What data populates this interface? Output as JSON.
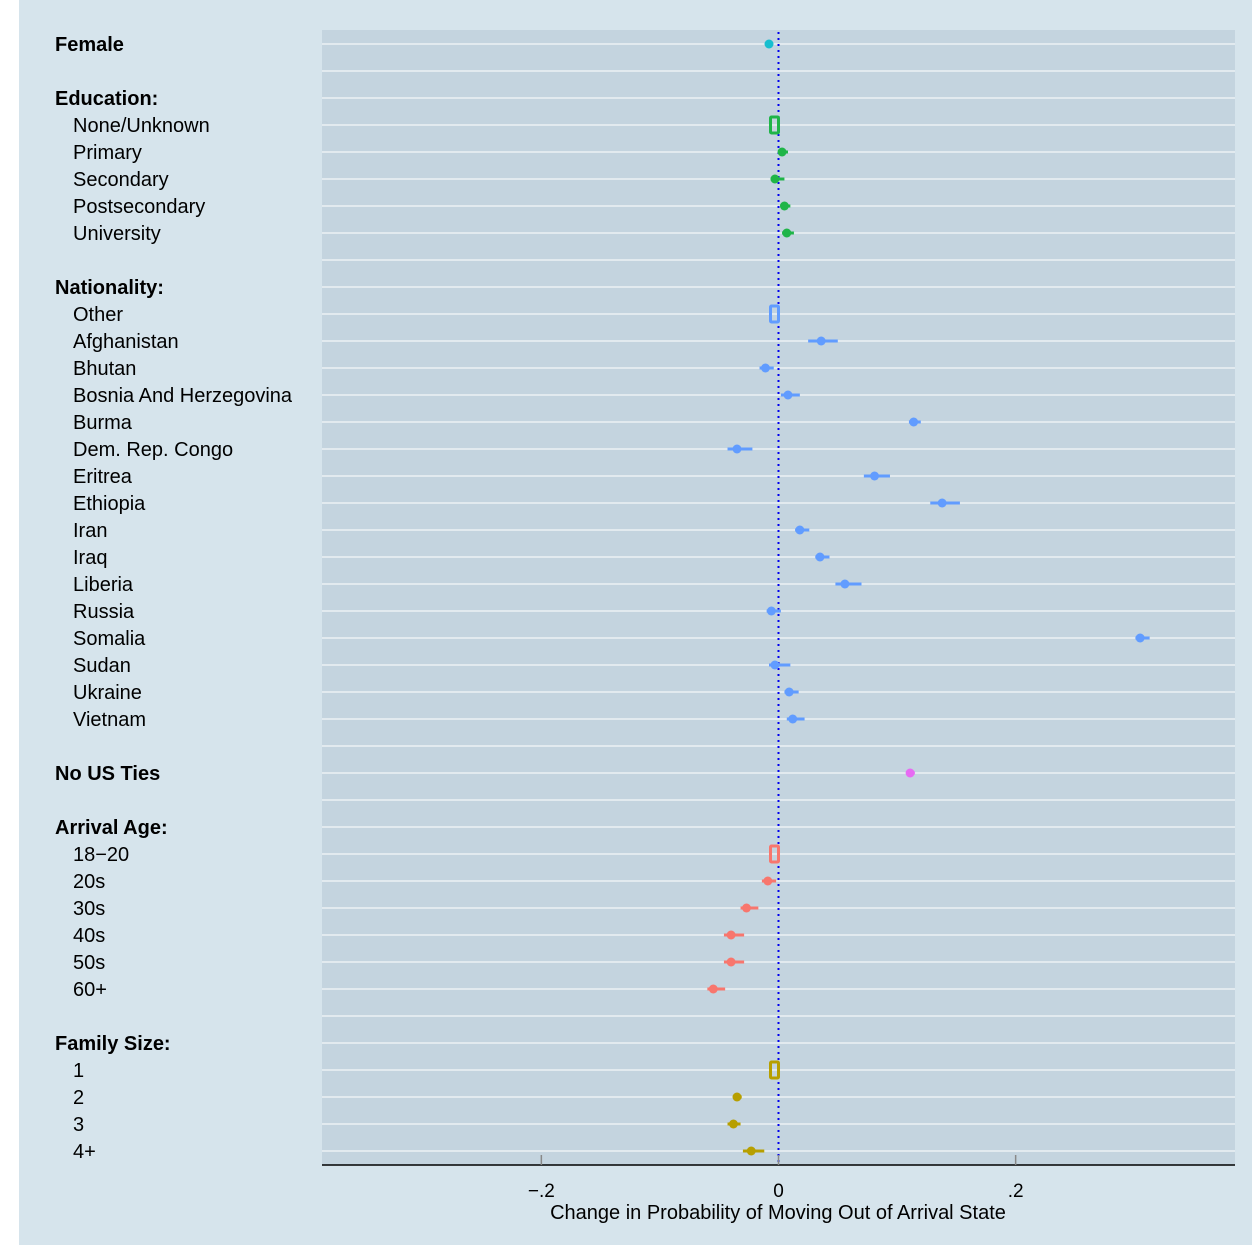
{
  "chart_data": {
    "type": "scatter",
    "xlabel": "Change in Probability of Moving Out of Arrival State",
    "xlim": [
      -0.385,
      0.385
    ],
    "x_ticks": [
      {
        "value": -0.2,
        "label": "−.2"
      },
      {
        "value": 0,
        "label": "0"
      },
      {
        "value": 0.2,
        "label": ".2"
      }
    ],
    "reference_line": {
      "x": 0,
      "style": "dotted",
      "color": "#0000ee"
    },
    "colors": {
      "panel": "#c4d4df",
      "outer": "#d6e4ec",
      "female": "#17becf",
      "education": "#1fb548",
      "nationality": "#619cff",
      "us_ties": "#e76bf3",
      "arrival_age": "#f8766d",
      "family_size": "#b79f00"
    },
    "rows": [
      {
        "label": "Female",
        "header": true,
        "group": "female",
        "estimate": -0.008,
        "ci": [
          -0.01,
          -0.006
        ]
      },
      {
        "label": "",
        "spacer": true
      },
      {
        "label": "Education:",
        "header": true
      },
      {
        "label": "None/Unknown",
        "group": "education",
        "reference": true
      },
      {
        "label": "Primary",
        "group": "education",
        "estimate": 0.003,
        "ci": [
          0.0,
          0.008
        ]
      },
      {
        "label": "Secondary",
        "group": "education",
        "estimate": -0.003,
        "ci": [
          -0.006,
          0.005
        ]
      },
      {
        "label": "Postsecondary",
        "group": "education",
        "estimate": 0.005,
        "ci": [
          0.002,
          0.01
        ]
      },
      {
        "label": "University",
        "group": "education",
        "estimate": 0.007,
        "ci": [
          0.003,
          0.013
        ]
      },
      {
        "label": "",
        "spacer": true
      },
      {
        "label": "Nationality:",
        "header": true
      },
      {
        "label": "Other",
        "group": "nationality",
        "reference": true
      },
      {
        "label": "Afghanistan",
        "group": "nationality",
        "estimate": 0.036,
        "ci": [
          0.025,
          0.05
        ]
      },
      {
        "label": "Bhutan",
        "group": "nationality",
        "estimate": -0.011,
        "ci": [
          -0.016,
          -0.004
        ]
      },
      {
        "label": "Bosnia And Herzegovina",
        "group": "nationality",
        "estimate": 0.008,
        "ci": [
          0.002,
          0.018
        ]
      },
      {
        "label": "Burma",
        "group": "nationality",
        "estimate": 0.114,
        "ci": [
          0.11,
          0.12
        ]
      },
      {
        "label": "Dem. Rep. Congo",
        "group": "nationality",
        "estimate": -0.035,
        "ci": [
          -0.043,
          -0.022
        ]
      },
      {
        "label": "Eritrea",
        "group": "nationality",
        "estimate": 0.081,
        "ci": [
          0.072,
          0.094
        ]
      },
      {
        "label": "Ethiopia",
        "group": "nationality",
        "estimate": 0.138,
        "ci": [
          0.128,
          0.153
        ]
      },
      {
        "label": "Iran",
        "group": "nationality",
        "estimate": 0.018,
        "ci": [
          0.014,
          0.026
        ]
      },
      {
        "label": "Iraq",
        "group": "nationality",
        "estimate": 0.035,
        "ci": [
          0.031,
          0.043
        ]
      },
      {
        "label": "Liberia",
        "group": "nationality",
        "estimate": 0.056,
        "ci": [
          0.048,
          0.07
        ]
      },
      {
        "label": "Russia",
        "group": "nationality",
        "estimate": -0.006,
        "ci": [
          -0.01,
          0.002
        ]
      },
      {
        "label": "Somalia",
        "group": "nationality",
        "estimate": 0.305,
        "ci": [
          0.301,
          0.313
        ]
      },
      {
        "label": "Sudan",
        "group": "nationality",
        "estimate": -0.003,
        "ci": [
          -0.008,
          0.01
        ]
      },
      {
        "label": "Ukraine",
        "group": "nationality",
        "estimate": 0.009,
        "ci": [
          0.005,
          0.017
        ]
      },
      {
        "label": "Vietnam",
        "group": "nationality",
        "estimate": 0.012,
        "ci": [
          0.007,
          0.022
        ]
      },
      {
        "label": "",
        "spacer": true
      },
      {
        "label": "No US Ties",
        "header": true,
        "group": "us_ties",
        "estimate": 0.111,
        "ci": [
          0.108,
          0.115
        ]
      },
      {
        "label": "",
        "spacer": true
      },
      {
        "label": "Arrival Age:",
        "header": true
      },
      {
        "label": "18−20",
        "group": "arrival_age",
        "reference": true
      },
      {
        "label": "20s",
        "group": "arrival_age",
        "estimate": -0.009,
        "ci": [
          -0.014,
          -0.002
        ]
      },
      {
        "label": "30s",
        "group": "arrival_age",
        "estimate": -0.027,
        "ci": [
          -0.032,
          -0.017
        ]
      },
      {
        "label": "40s",
        "group": "arrival_age",
        "estimate": -0.04,
        "ci": [
          -0.046,
          -0.029
        ]
      },
      {
        "label": "50s",
        "group": "arrival_age",
        "estimate": -0.04,
        "ci": [
          -0.046,
          -0.029
        ]
      },
      {
        "label": "60+",
        "group": "arrival_age",
        "estimate": -0.055,
        "ci": [
          -0.06,
          -0.045
        ]
      },
      {
        "label": "",
        "spacer": true
      },
      {
        "label": "Family Size:",
        "header": true
      },
      {
        "label": "1",
        "group": "family_size",
        "reference": true
      },
      {
        "label": "2",
        "group": "family_size",
        "estimate": -0.035,
        "ci": [
          -0.038,
          -0.031
        ]
      },
      {
        "label": "3",
        "group": "family_size",
        "estimate": -0.038,
        "ci": [
          -0.043,
          -0.032
        ]
      },
      {
        "label": "4+",
        "group": "family_size",
        "estimate": -0.023,
        "ci": [
          -0.03,
          -0.012
        ]
      }
    ]
  }
}
